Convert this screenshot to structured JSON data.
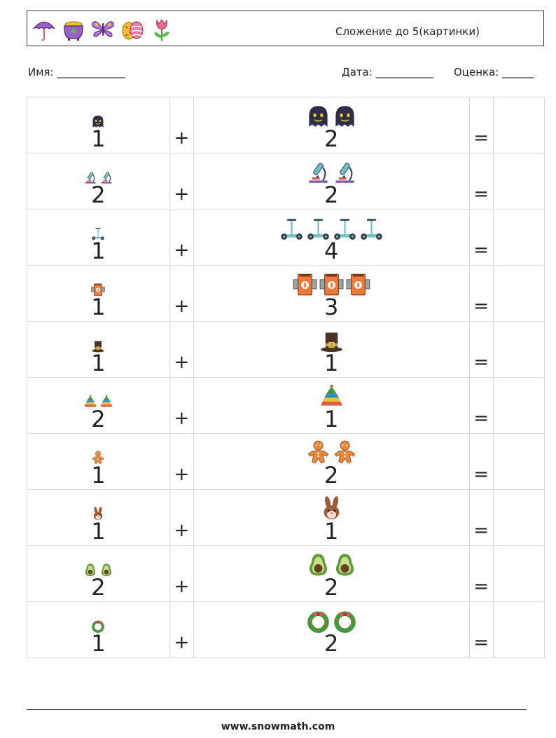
{
  "header": {
    "title": "Сложение до 5(картинки)",
    "icons": [
      "umbrella-icon",
      "pot-of-gold-icon",
      "butterfly-icon",
      "easter-egg-icon",
      "tulip-icon"
    ]
  },
  "fields": {
    "name_label": "Имя: _____________",
    "date_label": "Дата: ___________",
    "grade_label": "Оценка: ______"
  },
  "operators": {
    "plus": "+",
    "equals": "="
  },
  "problems": [
    {
      "a": "1",
      "b": "2",
      "icon": "ghost-icon"
    },
    {
      "a": "2",
      "b": "2",
      "icon": "microscope-icon"
    },
    {
      "a": "1",
      "b": "4",
      "icon": "segway-icon"
    },
    {
      "a": "1",
      "b": "3",
      "icon": "barrel-icon"
    },
    {
      "a": "1",
      "b": "1",
      "icon": "pilgrim-hat-icon"
    },
    {
      "a": "2",
      "b": "1",
      "icon": "pyramid-toy-icon"
    },
    {
      "a": "1",
      "b": "2",
      "icon": "gingerbread-man-icon"
    },
    {
      "a": "1",
      "b": "1",
      "icon": "rabbit-icon"
    },
    {
      "a": "2",
      "b": "2",
      "icon": "avocado-icon"
    },
    {
      "a": "1",
      "b": "2",
      "icon": "wreath-icon"
    }
  ],
  "footer": {
    "url": "www.snowmath.com"
  },
  "colors": {
    "border": "#d8d8d8",
    "text": "#222222"
  }
}
